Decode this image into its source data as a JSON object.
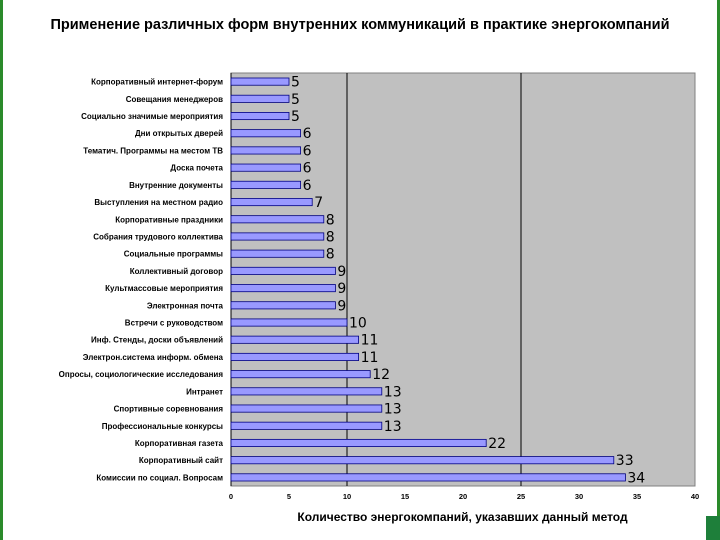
{
  "chart_data": {
    "type": "bar",
    "orientation": "horizontal",
    "title": "Применение различных форм внутренних коммуникаций в практике энергокомпаний",
    "xlabel": "Количество энергокомпаний, указавших данный метод",
    "ylabel": "",
    "xlim": [
      0,
      40
    ],
    "xticks": [
      0,
      5,
      10,
      15,
      20,
      25,
      30,
      35,
      40
    ],
    "grid": "vertical at 10, 25",
    "plot_background": "#c0c0c0",
    "bar_color": "#9999ff",
    "categories": [
      "Корпоративный интернет-форум",
      "Совещания менеджеров",
      "Социально значимые мероприятия",
      "Дни открытых дверей",
      "Тематич. Программы на местом ТВ",
      "Доска почета",
      "Внутренние документы",
      "Выступления на местном радио",
      "Корпоративные праздники",
      "Собрания трудового коллектива",
      "Социальные программы",
      "Коллективный договор",
      "Культмассовые мероприятия",
      "Электронная почта",
      "Встречи с руководством",
      "Инф. Стенды, доски объявлений",
      "Электрон.система информ. обмена",
      "Опросы, социологические исследования",
      "Интранет",
      "Спортивные соревнования",
      "Профессиональные конкурсы",
      "Корпоративная газета",
      "Корпоративный сайт",
      "Комиссии по социал. Вопросам"
    ],
    "values": [
      5,
      5,
      5,
      6,
      6,
      6,
      6,
      7,
      8,
      8,
      8,
      9,
      9,
      9,
      10,
      11,
      11,
      12,
      13,
      13,
      13,
      22,
      33,
      34
    ]
  }
}
